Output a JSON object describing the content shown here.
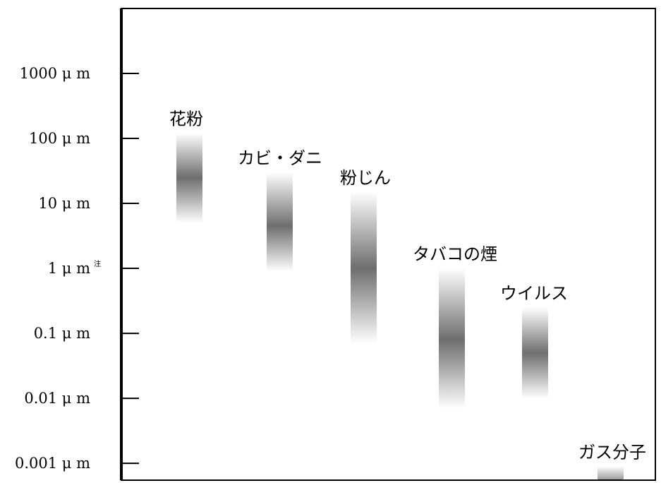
{
  "chart_data": {
    "type": "bar",
    "title": "",
    "xlabel": "",
    "ylabel": "",
    "y_scale": "log",
    "unit": "μm",
    "ylim": [
      0.00055,
      10000
    ],
    "y_ticks": [
      {
        "value": 1000,
        "label": "1000 μ m",
        "note": ""
      },
      {
        "value": 100,
        "label": "100 μ m",
        "note": ""
      },
      {
        "value": 10,
        "label": "10 μ m",
        "note": ""
      },
      {
        "value": 1,
        "label": "1 μ m",
        "note": "注"
      },
      {
        "value": 0.1,
        "label": "0.1 μ m",
        "note": ""
      },
      {
        "value": 0.01,
        "label": "0.01 μ m",
        "note": ""
      },
      {
        "value": 0.001,
        "label": "0.001 μ m",
        "note": ""
      }
    ],
    "grid": false,
    "legend": "none",
    "bar_color": "#6e6e6e",
    "categories": [
      {
        "name": "花粉",
        "min": 5,
        "max": 120,
        "peak": 25
      },
      {
        "name": "カビ・ダニ",
        "min": 0.9,
        "max": 30,
        "peak": 4.5
      },
      {
        "name": "粉じん",
        "min": 0.07,
        "max": 15,
        "peak": 1
      },
      {
        "name": "タバコの煙",
        "min": 0.007,
        "max": 1,
        "peak": 0.08
      },
      {
        "name": "ウイルス",
        "min": 0.01,
        "max": 0.25,
        "peak": 0.05
      },
      {
        "name": "ガス分子",
        "min": 0.0003,
        "max": 0.0009,
        "peak": 0.00045
      }
    ]
  }
}
